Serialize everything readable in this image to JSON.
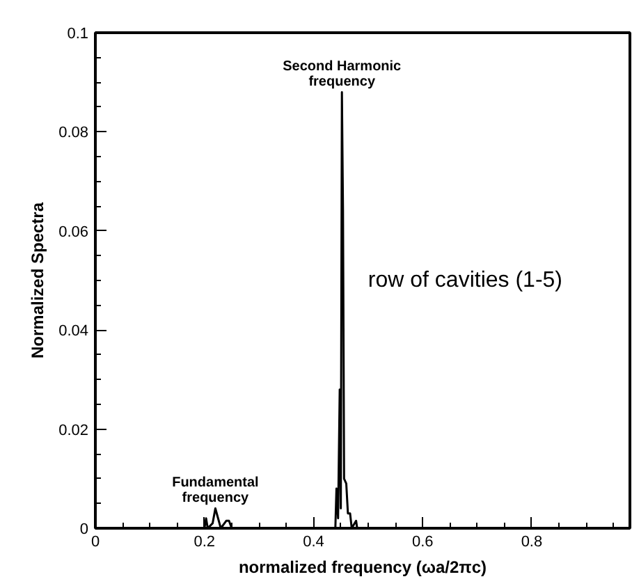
{
  "chart_data": {
    "type": "line",
    "xlabel": "normalized frequency (ωa/2πc)",
    "ylabel": "Normalized Spectra",
    "x": [
      0.0,
      0.2,
      0.203,
      0.206,
      0.215,
      0.22,
      0.225,
      0.23,
      0.24,
      0.245,
      0.25,
      0.44,
      0.442,
      0.445,
      0.448,
      0.45,
      0.452,
      0.454,
      0.456,
      0.46,
      0.463,
      0.467,
      0.47,
      0.478,
      0.48,
      0.98
    ],
    "series": [
      {
        "color": "#000000",
        "values": [
          0,
          0,
          0.002,
          0,
          0.001,
          0.004,
          0.002,
          0,
          0.0015,
          0.0015,
          0,
          0,
          0.008,
          0.002,
          0.028,
          0.004,
          0.088,
          0.064,
          0.01,
          0.009,
          0.003,
          0.003,
          0,
          0.0015,
          0,
          0
        ]
      }
    ],
    "xlim": [
      0,
      0.98
    ],
    "ylim": [
      0,
      0.1
    ],
    "xticks": [
      0,
      0.2,
      0.4,
      0.6,
      0.8,
      {
        "value": 0.05,
        "label": null
      },
      {
        "value": 0.1,
        "label": null
      },
      {
        "value": 0.15,
        "label": null
      },
      {
        "value": 0.25,
        "label": null
      },
      {
        "value": 0.3,
        "label": null
      },
      {
        "value": 0.35,
        "label": null
      },
      {
        "value": 0.45,
        "label": null
      },
      {
        "value": 0.5,
        "label": null
      },
      {
        "value": 0.55,
        "label": null
      },
      {
        "value": 0.65,
        "label": null
      },
      {
        "value": 0.7,
        "label": null
      },
      {
        "value": 0.75,
        "label": null
      },
      {
        "value": 0.85,
        "label": null
      },
      {
        "value": 0.9,
        "label": null
      },
      {
        "value": 0.95,
        "label": null
      }
    ],
    "yticks": [
      0,
      0.02,
      0.04,
      0.06,
      0.08,
      0.1,
      {
        "value": 0.005,
        "label": null
      },
      {
        "value": 0.01,
        "label": null
      },
      {
        "value": 0.015,
        "label": null
      },
      {
        "value": 0.025,
        "label": null
      },
      {
        "value": 0.03,
        "label": null
      },
      {
        "value": 0.035,
        "label": null
      },
      {
        "value": 0.045,
        "label": null
      },
      {
        "value": 0.05,
        "label": null
      },
      {
        "value": 0.055,
        "label": null
      },
      {
        "value": 0.065,
        "label": null
      },
      {
        "value": 0.07,
        "label": null
      },
      {
        "value": 0.075,
        "label": null
      },
      {
        "value": 0.085,
        "label": null
      },
      {
        "value": 0.09,
        "label": null
      },
      {
        "value": 0.095,
        "label": null
      }
    ],
    "grid": false,
    "marker": "none",
    "line_style": "solid",
    "annotations": [
      {
        "text": "Second Harmonic\nfrequency",
        "x": 0.452,
        "y": 0.088
      },
      {
        "text": "Fundamental\nfrequency",
        "x": 0.22,
        "y": 0.004
      },
      "row of cavities (1-5)"
    ]
  }
}
